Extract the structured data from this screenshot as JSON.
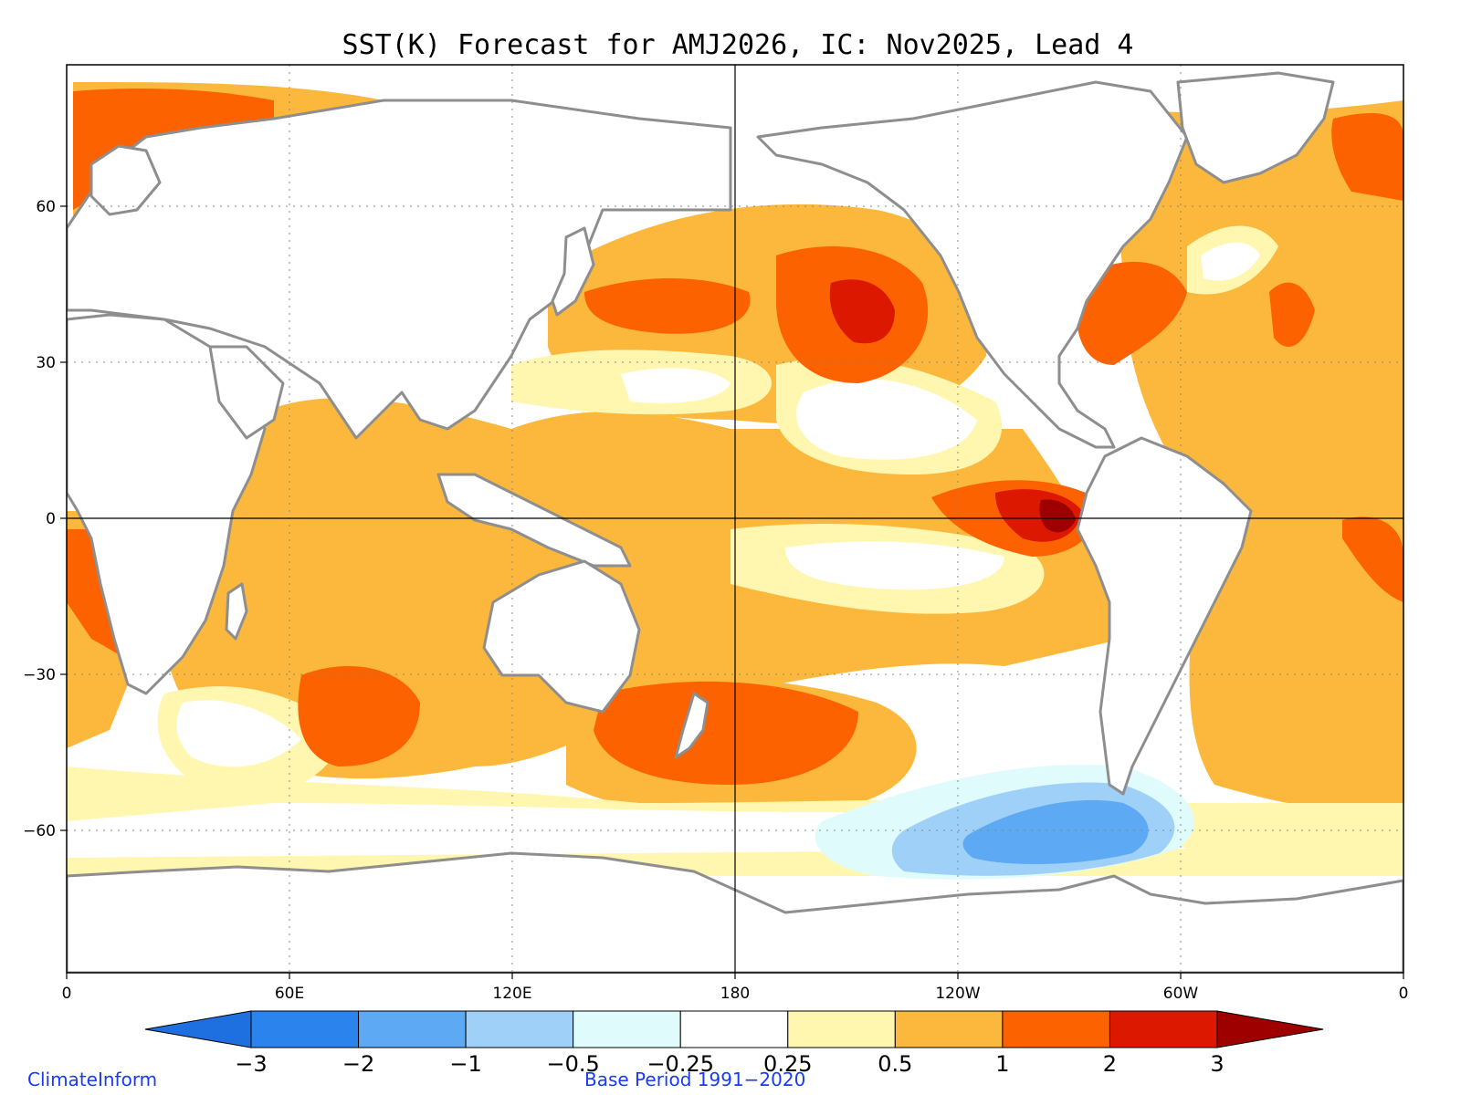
{
  "title": "SST(K) Forecast for AMJ2026, IC: Nov2025, Lead 4",
  "map": {
    "variable": "SST anomaly (K)",
    "projection": "cylindrical equidistant",
    "lon_labels": [
      "0",
      "60E",
      "120E",
      "180",
      "120W",
      "60W",
      "0"
    ],
    "lat_labels": [
      "60",
      "30",
      "0",
      "−30",
      "−60"
    ],
    "land_color": "#ffffff",
    "coast_color": "#8e8e8e"
  },
  "colorbar": {
    "levels": [
      "−3",
      "−2",
      "−1",
      "−0.5",
      "−0.25",
      "0.25",
      "0.5",
      "1",
      "2",
      "3"
    ],
    "colors": [
      "#1e6fe0",
      "#2b84ee",
      "#5ea9f3",
      "#9fd1f8",
      "#e0fbfc",
      "#ffffff",
      "#fff7b0",
      "#fbb83c",
      "#fc6200",
      "#dc1800",
      "#9e0000"
    ]
  },
  "anomaly_colors": {
    "neutral": "#ffffff",
    "weak_warm": "#fff7b0",
    "warm": "#fbb83c",
    "strong_warm": "#fc6200",
    "very_strong_warm": "#dc1800",
    "extreme_warm": "#9e0000",
    "weak_cool": "#e0fbfc",
    "cool": "#9fd1f8",
    "strong_cool": "#5ea9f3"
  },
  "footer": {
    "left": "ClimateInform",
    "center": "Base Period 1991−2020",
    "color": "#1a3cf0"
  }
}
